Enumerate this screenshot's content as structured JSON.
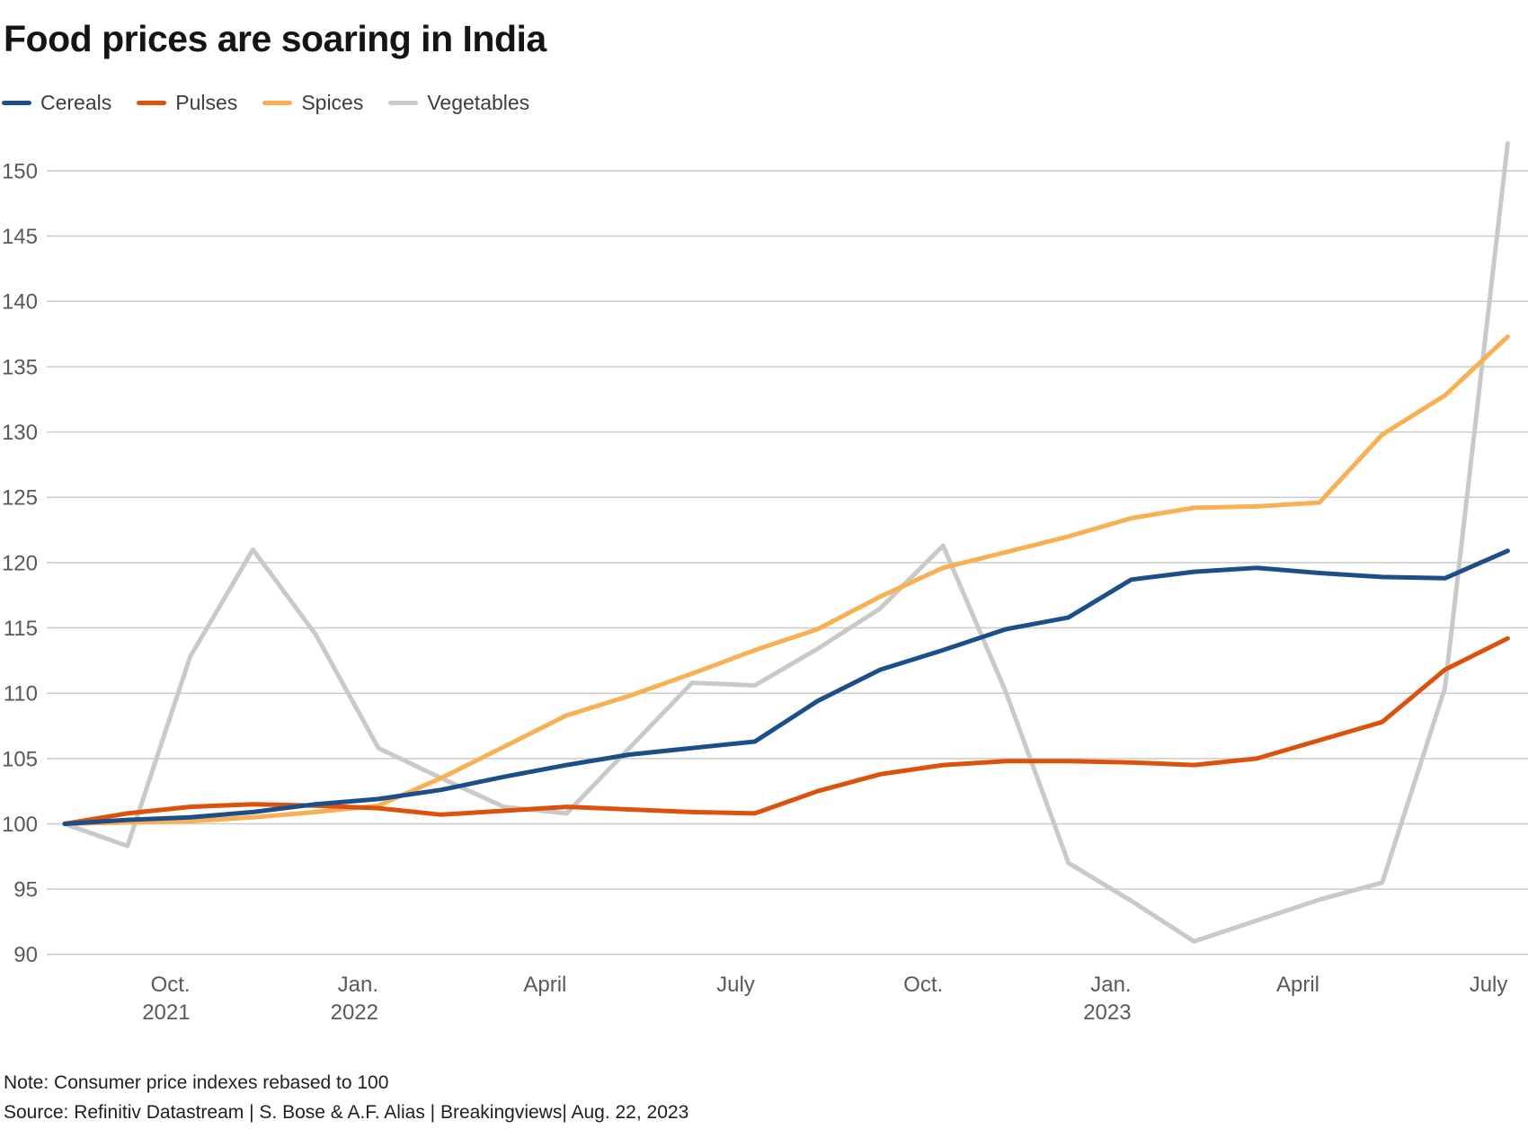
{
  "title": "Food prices are soaring in India",
  "legend": {
    "items": [
      {
        "label": "Cereals",
        "color": "#1c4e8a"
      },
      {
        "label": "Pulses",
        "color": "#dc520d"
      },
      {
        "label": "Spices",
        "color": "#f8b053"
      },
      {
        "label": "Vegetables",
        "color": "#c9c9c9"
      }
    ]
  },
  "chart_data": {
    "type": "line",
    "title": "Food prices are soaring in India",
    "xlabel": "",
    "ylabel": "",
    "ylim": [
      90,
      150
    ],
    "yticks": [
      90,
      95,
      100,
      105,
      110,
      115,
      120,
      125,
      130,
      135,
      140,
      145,
      150
    ],
    "grid": "horizontal",
    "grid_color": "#cccccc",
    "legend_position": "top-left",
    "x": [
      "Aug. 2021",
      "Sep. 2021",
      "Oct. 2021",
      "Nov. 2021",
      "Dec. 2021",
      "Jan. 2022",
      "Feb. 2022",
      "Mar. 2022",
      "Apr. 2022",
      "May 2022",
      "Jun. 2022",
      "Jul. 2022",
      "Aug. 2022",
      "Sep. 2022",
      "Oct. 2022",
      "Nov. 2022",
      "Dec. 2022",
      "Jan. 2023",
      "Feb. 2023",
      "Mar. 2023",
      "Apr. 2023",
      "May 2023",
      "Jun. 2023",
      "Jul. 2023"
    ],
    "xticks": [
      {
        "index": 2,
        "label": "Oct.",
        "year": "2021"
      },
      {
        "index": 5,
        "label": "Jan.",
        "year": "2022"
      },
      {
        "index": 8,
        "label": "April",
        "year": ""
      },
      {
        "index": 11,
        "label": "July",
        "year": ""
      },
      {
        "index": 14,
        "label": "Oct.",
        "year": ""
      },
      {
        "index": 17,
        "label": "Jan.",
        "year": "2023"
      },
      {
        "index": 20,
        "label": "April",
        "year": ""
      },
      {
        "index": 23,
        "label": "July",
        "year": ""
      }
    ],
    "series": [
      {
        "name": "Cereals",
        "color": "#1c4e8a",
        "values": [
          100,
          100.3,
          100.5,
          100.9,
          101.5,
          101.9,
          102.6,
          103.6,
          104.5,
          105.3,
          105.8,
          106.3,
          109.4,
          111.8,
          113.3,
          114.9,
          115.8,
          118.7,
          119.3,
          119.6,
          119.2,
          118.9,
          118.8,
          120.9
        ]
      },
      {
        "name": "Pulses",
        "color": "#dc520d",
        "values": [
          100,
          100.8,
          101.3,
          101.5,
          101.4,
          101.2,
          100.7,
          101.0,
          101.3,
          101.1,
          100.9,
          100.8,
          102.5,
          103.8,
          104.5,
          104.8,
          104.8,
          104.7,
          104.5,
          105.0,
          106.4,
          107.8,
          111.8,
          114.2
        ]
      },
      {
        "name": "Spices",
        "color": "#f8b053",
        "values": [
          100,
          100.1,
          100.2,
          100.5,
          100.9,
          101.4,
          103.5,
          105.9,
          108.3,
          109.8,
          111.5,
          113.3,
          114.9,
          117.4,
          119.6,
          120.8,
          122.0,
          123.4,
          124.2,
          124.3,
          124.6,
          129.8,
          132.8,
          137.3
        ]
      },
      {
        "name": "Vegetables",
        "color": "#c9c9c9",
        "values": [
          100,
          98.3,
          112.8,
          121.0,
          114.5,
          105.8,
          103.5,
          101.3,
          100.8,
          105.8,
          110.8,
          110.6,
          113.4,
          116.5,
          121.3,
          110.1,
          97.0,
          94.1,
          91.0,
          92.6,
          94.2,
          95.5,
          110.4,
          152.1
        ]
      }
    ]
  },
  "footer": {
    "note": "Note: Consumer price indexes rebased to 100",
    "source": "Source: Refinitiv Datastream | S. Bose & A.F. Alias | Breakingviews| Aug. 22, 2023"
  }
}
